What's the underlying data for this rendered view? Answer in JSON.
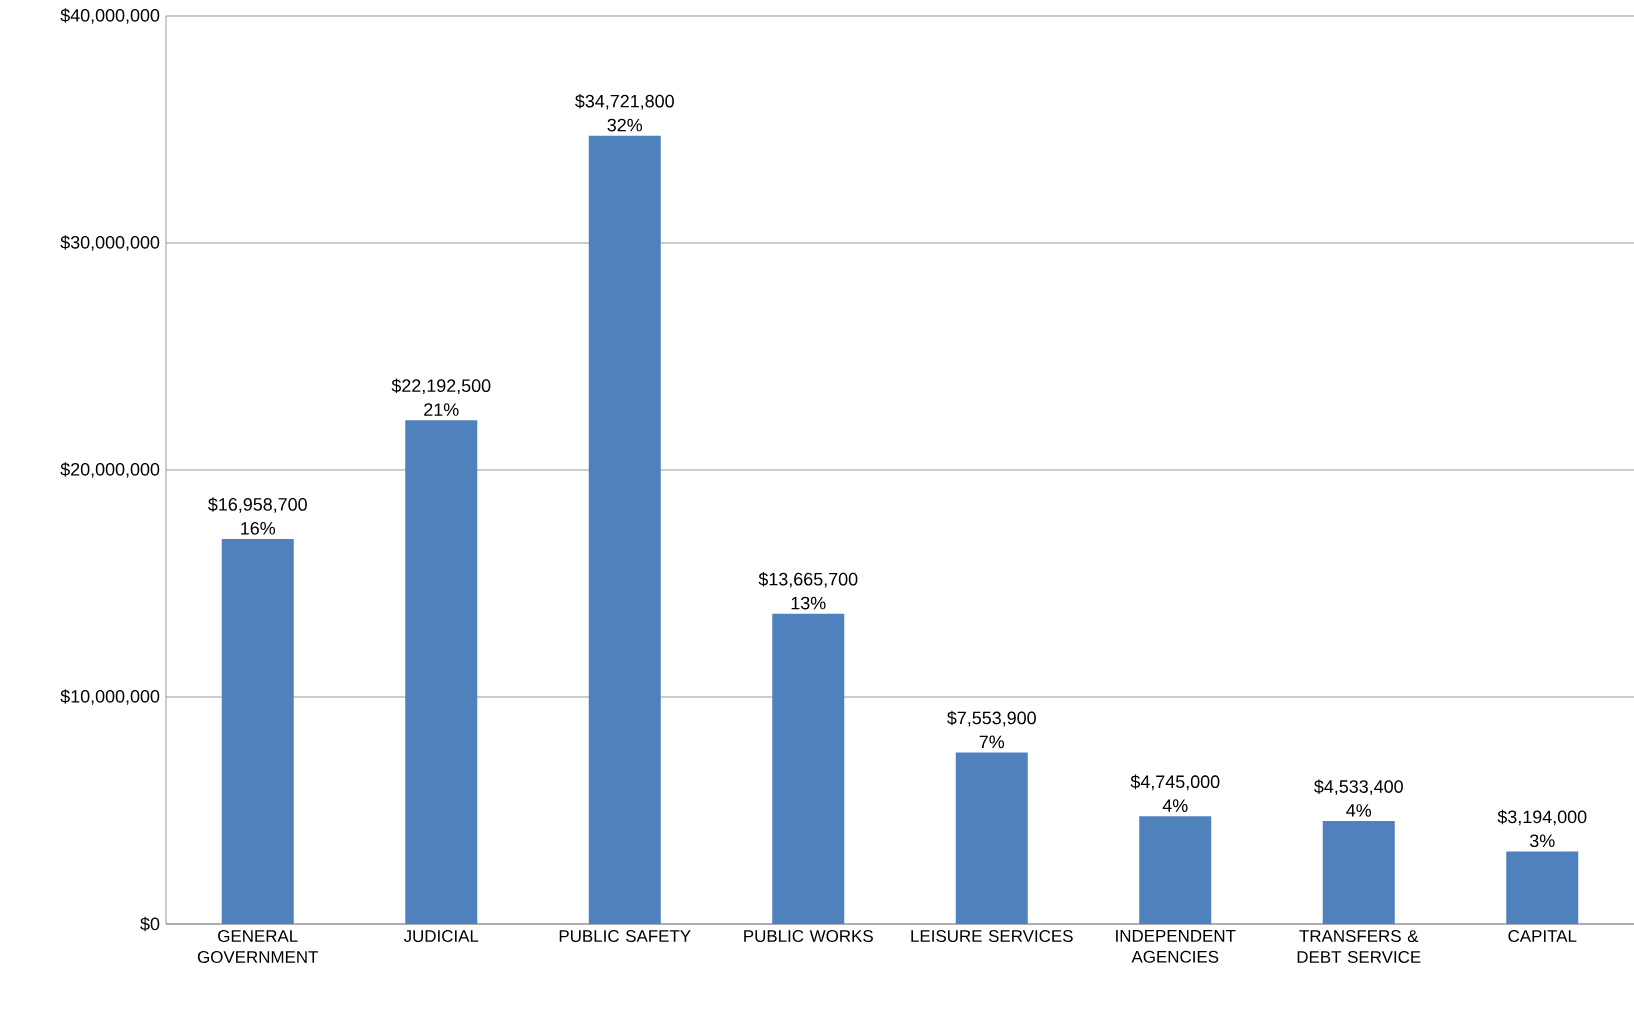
{
  "chart_data": {
    "type": "bar",
    "categories": [
      "GENERAL GOVERNMENT",
      "JUDICIAL",
      "PUBLIC SAFETY",
      "PUBLIC WORKS",
      "LEISURE SERVICES",
      "INDEPENDENT AGENCIES",
      "TRANSFERS & DEBT SERVICE",
      "CAPITAL"
    ],
    "values": [
      16958700,
      22192500,
      34721800,
      13665700,
      7553900,
      4745000,
      4533400,
      3194000
    ],
    "value_labels": [
      "$16,958,700",
      "$22,192,500",
      "$34,721,800",
      "$13,665,700",
      "$7,553,900",
      "$4,745,000",
      "$4,533,400",
      "$3,194,000"
    ],
    "annotations": [
      {
        "text": "16%",
        "x": "GENERAL GOVERNMENT",
        "y": 16958700
      },
      {
        "text": "21%",
        "x": "JUDICIAL",
        "y": 22192500
      },
      {
        "text": "32%",
        "x": "PUBLIC SAFETY",
        "y": 34721800
      },
      {
        "text": "13%",
        "x": "PUBLIC WORKS",
        "y": 13665700
      },
      {
        "text": "7%",
        "x": "LEISURE SERVICES",
        "y": 7553900
      },
      {
        "text": "4%",
        "x": "INDEPENDENT AGENCIES",
        "y": 4745000
      },
      {
        "text": "4%",
        "x": "TRANSFERS & DEBT SERVICE",
        "y": 4533400
      },
      {
        "text": "3%",
        "x": "CAPITAL",
        "y": 3194000
      }
    ],
    "color": "#4f81bd",
    "ylim": [
      0,
      40000000
    ],
    "yticks": [
      {
        "value": 0,
        "label": "$0"
      },
      {
        "value": 10000000,
        "label": "$10,000,000"
      },
      {
        "value": 20000000,
        "label": "$20,000,000"
      },
      {
        "value": 30000000,
        "label": "$30,000,000"
      },
      {
        "value": 40000000,
        "label": "$40,000,000"
      }
    ],
    "grid": "y"
  }
}
